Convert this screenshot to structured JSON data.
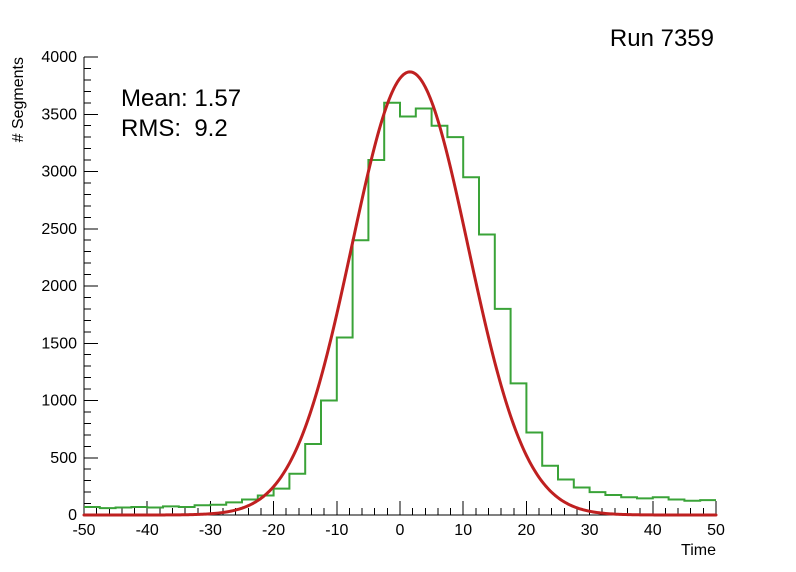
{
  "page": {
    "background": "#ffffff"
  },
  "chart_data": {
    "type": "bar",
    "subtype": "histogram-with-gaussian-fit",
    "title": "Run 7359",
    "xlabel": "Time",
    "ylabel": "# Segments",
    "annotations": {
      "mean": "Mean: 1.57",
      "rms": "RMS:  9.2"
    },
    "xlim": [
      -50,
      50
    ],
    "ylim": [
      0,
      4000
    ],
    "grid": false,
    "legend": "none",
    "x_ticks": {
      "values": [
        -50,
        -40,
        -30,
        -20,
        -10,
        0,
        10,
        20,
        30,
        40,
        50
      ],
      "labels": [
        "-50",
        "-40",
        "-30",
        "-20",
        "-10",
        "0",
        "10",
        "20",
        "30",
        "40",
        "50"
      ]
    },
    "y_ticks": {
      "values": [
        0,
        500,
        1000,
        1500,
        2000,
        2500,
        3000,
        3500,
        4000
      ],
      "labels": [
        "0",
        "500",
        "1000",
        "1500",
        "2000",
        "2500",
        "3000",
        "3500",
        "4000"
      ]
    },
    "x_minor_step": 2,
    "y_minor_step": 100,
    "histogram": {
      "color": "#3aa338",
      "line_width": 2,
      "bin_start": -50,
      "bin_width": 2.5,
      "counts": [
        70,
        60,
        65,
        70,
        65,
        75,
        70,
        85,
        90,
        110,
        135,
        170,
        230,
        360,
        620,
        1000,
        1550,
        2400,
        3100,
        3600,
        3480,
        3550,
        3400,
        3300,
        2950,
        2450,
        1800,
        1150,
        720,
        430,
        310,
        240,
        200,
        175,
        155,
        145,
        155,
        135,
        125,
        130
      ]
    },
    "fit": {
      "model": "gaussian",
      "amplitude": 3870,
      "mean": 1.57,
      "sigma": 9.2,
      "range": [
        -50,
        50
      ],
      "color": "#bf2020",
      "line_width": 3
    },
    "axis_color": "#000000"
  }
}
